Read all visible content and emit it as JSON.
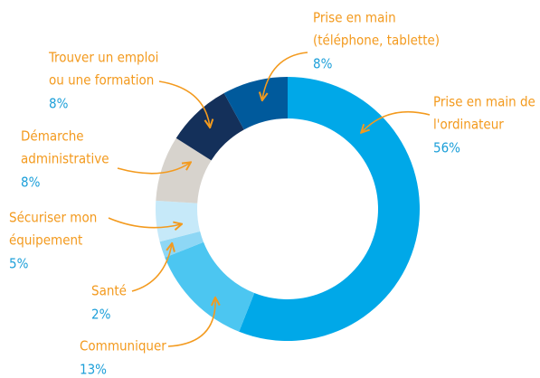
{
  "chart_data": {
    "type": "donut",
    "categories": [
      [
        "Prise en main de",
        "l'ordinateur"
      ],
      [
        "Communiquer"
      ],
      [
        "Santé"
      ],
      [
        "Sécuriser mon",
        "équipement"
      ],
      [
        "Démarche",
        "administrative"
      ],
      [
        "Trouver un emploi",
        "ou une formation"
      ],
      [
        "Prise en main",
        "(téléphone, tablette)"
      ]
    ],
    "values": [
      56,
      13,
      2,
      5,
      8,
      8,
      8
    ],
    "value_labels": [
      "56%",
      "13%",
      "2%",
      "5%",
      "8%",
      "8%",
      "8%"
    ],
    "colors": [
      "#00a8e8",
      "#4cc6f1",
      "#8ed7f5",
      "#c6e9f9",
      "#d7d3cd",
      "#14305a",
      "#005a9c"
    ]
  }
}
